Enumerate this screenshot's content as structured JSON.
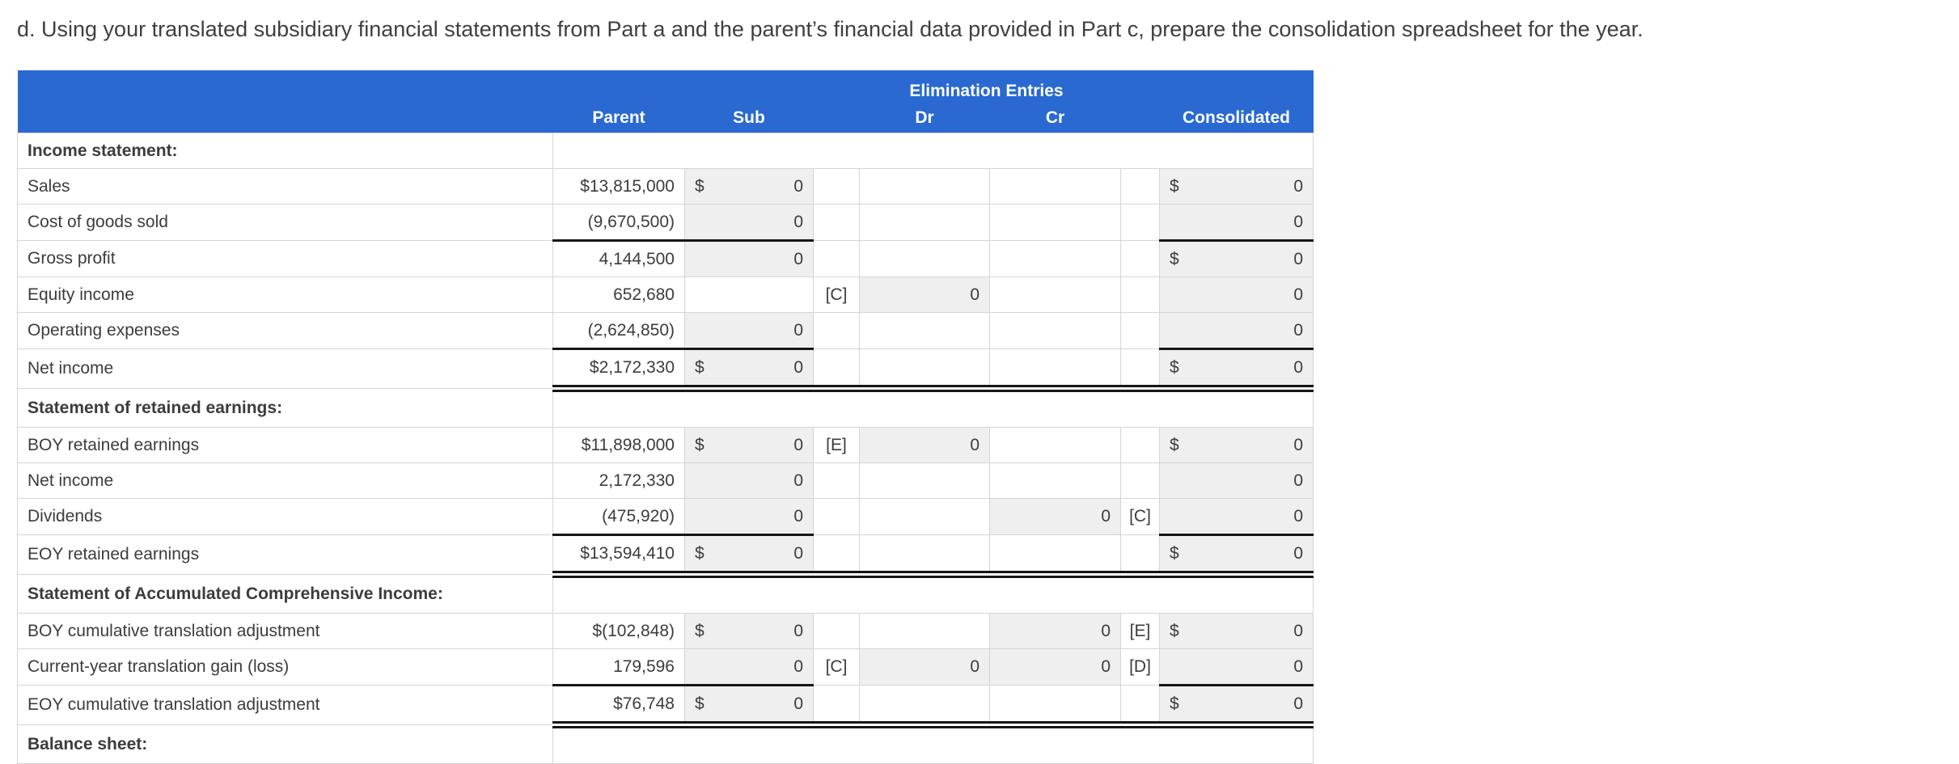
{
  "title": "d. Using your translated subsidiary financial statements from Part a and the parent’s financial data provided in Part c, prepare the consolidation spreadsheet for the year.",
  "colors": {
    "header_bg": "#2969d1",
    "header_text": "#ffffff",
    "input_cell_bg": "#efeff0",
    "grid_line": "#d5d5d5",
    "rule_line": "#161616"
  },
  "table": {
    "header": {
      "elimination_label": "Elimination Entries",
      "parent": "Parent",
      "sub": "Sub",
      "dr": "Dr",
      "cr": "Cr",
      "consolidated": "Consolidated"
    },
    "rows": [
      {
        "type": "section",
        "label": "Income statement:"
      },
      {
        "type": "data",
        "label": "Sales",
        "parent": "$13,815,000",
        "sub": {
          "p": "$",
          "v": "0",
          "input": true
        },
        "tag1": "",
        "dr": null,
        "cr": null,
        "tag2": "",
        "cons": {
          "p": "$",
          "v": "0",
          "input": true
        },
        "rule": "none"
      },
      {
        "type": "data",
        "label": "Cost of goods sold",
        "parent": "(9,670,500)",
        "sub": {
          "v": "0",
          "input": true
        },
        "tag1": "",
        "dr": null,
        "cr": null,
        "tag2": "",
        "cons": {
          "v": "0",
          "input": true
        },
        "rule": "single"
      },
      {
        "type": "data",
        "label": "Gross profit",
        "parent": "4,144,500",
        "sub": {
          "v": "0",
          "input": true
        },
        "tag1": "",
        "dr": null,
        "cr": null,
        "tag2": "",
        "cons": {
          "p": "$",
          "v": "0",
          "input": true
        },
        "rule": "none"
      },
      {
        "type": "data",
        "label": "Equity income",
        "parent": "652,680",
        "sub": null,
        "tag1": "[C]",
        "dr": {
          "v": "0",
          "input": true
        },
        "cr": null,
        "tag2": "",
        "cons": {
          "v": "0",
          "input": true
        },
        "rule": "none"
      },
      {
        "type": "data",
        "label": "Operating expenses",
        "parent": "(2,624,850)",
        "sub": {
          "v": "0",
          "input": true
        },
        "tag1": "",
        "dr": null,
        "cr": null,
        "tag2": "",
        "cons": {
          "v": "0",
          "input": true
        },
        "rule": "single"
      },
      {
        "type": "data",
        "label": "Net income",
        "parent": "$2,172,330",
        "sub": {
          "p": "$",
          "v": "0",
          "input": true
        },
        "tag1": "",
        "dr": null,
        "cr": null,
        "tag2": "",
        "cons": {
          "p": "$",
          "v": "0",
          "input": true
        },
        "rule": "double"
      },
      {
        "type": "section",
        "label": "Statement of retained earnings:"
      },
      {
        "type": "data",
        "label": "BOY retained earnings",
        "parent": "$11,898,000",
        "sub": {
          "p": "$",
          "v": "0",
          "input": true
        },
        "tag1": "[E]",
        "dr": {
          "v": "0",
          "input": true
        },
        "cr": null,
        "tag2": "",
        "cons": {
          "p": "$",
          "v": "0",
          "input": true
        },
        "rule": "none"
      },
      {
        "type": "data",
        "label": "Net income",
        "parent": "2,172,330",
        "sub": {
          "v": "0",
          "input": true
        },
        "tag1": "",
        "dr": null,
        "cr": null,
        "tag2": "",
        "cons": {
          "v": "0",
          "input": true
        },
        "rule": "none"
      },
      {
        "type": "data",
        "label": "Dividends",
        "parent": "(475,920)",
        "sub": {
          "v": "0",
          "input": true
        },
        "tag1": "",
        "dr": null,
        "cr": {
          "v": "0",
          "input": true
        },
        "tag2": "[C]",
        "cons": {
          "v": "0",
          "input": true
        },
        "rule": "single"
      },
      {
        "type": "data",
        "label": "EOY retained earnings",
        "parent": "$13,594,410",
        "sub": {
          "p": "$",
          "v": "0",
          "input": true
        },
        "tag1": "",
        "dr": null,
        "cr": null,
        "tag2": "",
        "cons": {
          "p": "$",
          "v": "0",
          "input": true
        },
        "rule": "double"
      },
      {
        "type": "section",
        "label": "Statement of Accumulated Comprehensive Income:"
      },
      {
        "type": "data",
        "label": "BOY cumulative translation adjustment",
        "parent": "$(102,848)",
        "sub": {
          "p": "$",
          "v": "0",
          "input": true
        },
        "tag1": "",
        "dr": null,
        "cr": {
          "v": "0",
          "input": true
        },
        "tag2": "[E]",
        "cons": {
          "p": "$",
          "v": "0",
          "input": true
        },
        "rule": "none"
      },
      {
        "type": "data",
        "label": "Current-year translation gain (loss)",
        "parent": "179,596",
        "sub": {
          "v": "0",
          "input": true
        },
        "tag1": "[C]",
        "dr": {
          "v": "0",
          "input": true
        },
        "cr": {
          "v": "0",
          "input": true
        },
        "tag2": "[D]",
        "cons": {
          "v": "0",
          "input": true
        },
        "rule": "single"
      },
      {
        "type": "data",
        "label": "EOY cumulative translation adjustment",
        "parent": "$76,748",
        "sub": {
          "p": "$",
          "v": "0",
          "input": true
        },
        "tag1": "",
        "dr": null,
        "cr": null,
        "tag2": "",
        "cons": {
          "p": "$",
          "v": "0",
          "input": true
        },
        "rule": "double"
      },
      {
        "type": "section",
        "label": "Balance sheet:"
      }
    ]
  }
}
